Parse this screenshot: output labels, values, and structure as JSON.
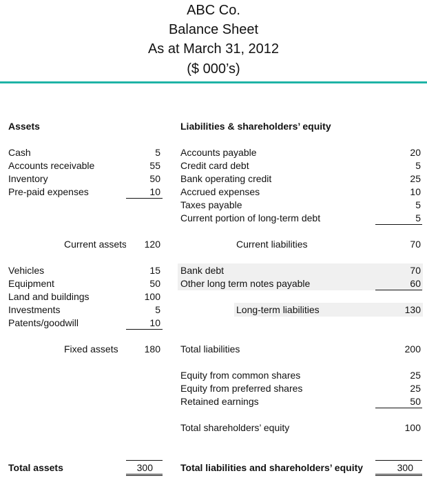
{
  "header": {
    "company": "ABC Co.",
    "title": "Balance Sheet",
    "date": "As at March 31, 2012",
    "units": "($ 000’s)"
  },
  "assets": {
    "heading": "Assets",
    "current": [
      {
        "label": "Cash",
        "value": "5"
      },
      {
        "label": "Accounts receivable",
        "value": "55"
      },
      {
        "label": "Inventory",
        "value": "50"
      },
      {
        "label": "Pre-paid expenses",
        "value": "10"
      }
    ],
    "current_total": {
      "label": "Current assets",
      "value": "120"
    },
    "fixed": [
      {
        "label": "Vehicles",
        "value": "15"
      },
      {
        "label": "Equipment",
        "value": "50"
      },
      {
        "label": "Land and buildings",
        "value": "100"
      },
      {
        "label": "Investments",
        "value": "5"
      },
      {
        "label": "Patents/goodwill",
        "value": "10"
      }
    ],
    "fixed_total": {
      "label": "Fixed assets",
      "value": "180"
    },
    "total": {
      "label": "Total assets",
      "value": "300"
    }
  },
  "liabilities": {
    "heading": "Liabilities & shareholders’ equity",
    "current": [
      {
        "label": "Accounts payable",
        "value": "20"
      },
      {
        "label": "Credit card debt",
        "value": "5"
      },
      {
        "label": "Bank operating credit",
        "value": "25"
      },
      {
        "label": "Accrued expenses",
        "value": "10"
      },
      {
        "label": "Taxes payable",
        "value": "5"
      },
      {
        "label": "Current portion of long-term debt",
        "value": "5"
      }
    ],
    "current_total": {
      "label": "Current liabilities",
      "value": "70"
    },
    "longterm": [
      {
        "label": "Bank debt",
        "value": "70"
      },
      {
        "label": "Other long term notes payable",
        "value": "60"
      }
    ],
    "longterm_total": {
      "label": "Long-term liabilities",
      "value": "130"
    },
    "total_liabilities": {
      "label": "Total liabilities",
      "value": "200"
    },
    "equity": [
      {
        "label": "Equity from common shares",
        "value": "25"
      },
      {
        "label": "Equity from preferred shares",
        "value": "25"
      },
      {
        "label": "Retained earnings",
        "value": "50"
      }
    ],
    "equity_total": {
      "label": "Total shareholders’ equity",
      "value": "100"
    },
    "total": {
      "label": "Total liabilities and shareholders’ equity",
      "value": "300"
    }
  },
  "colors": {
    "accent": "#1fb3a6",
    "band": "#f0f0f0"
  }
}
